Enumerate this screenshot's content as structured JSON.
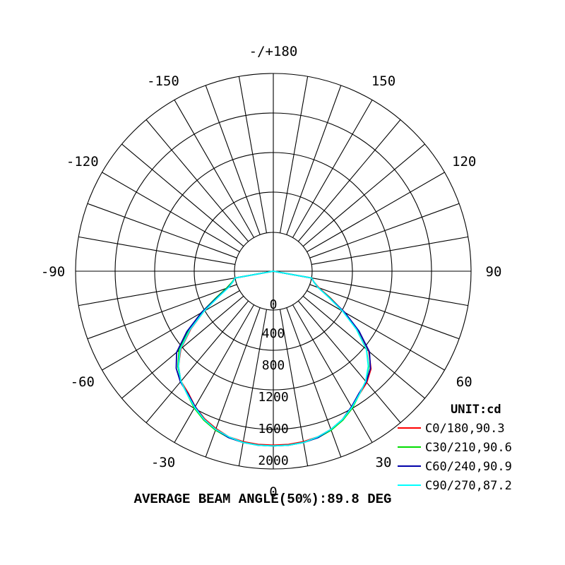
{
  "chart_data": {
    "type": "polar",
    "unit_label": "UNIT:cd",
    "footer": "AVERAGE BEAM ANGLE(50%):89.8 DEG",
    "radial_ticks": [
      "0",
      "400",
      "800",
      "1200",
      "1600",
      "2000"
    ],
    "radial_max": 2000,
    "angle_labels": [
      {
        "angle": 0,
        "text": "0"
      },
      {
        "angle": 30,
        "text": "30"
      },
      {
        "angle": 60,
        "text": "60"
      },
      {
        "angle": 90,
        "text": "90"
      },
      {
        "angle": 120,
        "text": "120"
      },
      {
        "angle": 150,
        "text": "150"
      },
      {
        "angle": 180,
        "text": "-/+180"
      },
      {
        "angle": -150,
        "text": "-150"
      },
      {
        "angle": -120,
        "text": "-120"
      },
      {
        "angle": -90,
        "text": "-90"
      },
      {
        "angle": -60,
        "text": "-60"
      },
      {
        "angle": -30,
        "text": "-30"
      }
    ],
    "angles": [
      -80,
      -75,
      -70,
      -65,
      -60,
      -55,
      -50,
      -45,
      -40,
      -35,
      -30,
      -25,
      -20,
      -15,
      -10,
      -5,
      0,
      5,
      10,
      15,
      20,
      25,
      30,
      35,
      40,
      45,
      50,
      55,
      60,
      65,
      70,
      75,
      80
    ],
    "series": [
      {
        "name": "C0/180,90.3",
        "color": "#ff0000",
        "values": [
          0,
          40,
          120,
          280,
          520,
          780,
          1030,
          1200,
          1320,
          1380,
          1480,
          1560,
          1620,
          1670,
          1690,
          1700,
          1700,
          1700,
          1690,
          1670,
          1630,
          1570,
          1490,
          1400,
          1340,
          1250,
          1080,
          800,
          540,
          300,
          120,
          40,
          0
        ]
      },
      {
        "name": "C30/210,90.6",
        "color": "#00dd00",
        "values": [
          0,
          50,
          140,
          310,
          560,
          820,
          1060,
          1210,
          1320,
          1400,
          1500,
          1580,
          1640,
          1680,
          1700,
          1710,
          1710,
          1710,
          1700,
          1680,
          1640,
          1580,
          1500,
          1400,
          1320,
          1210,
          1040,
          790,
          530,
          290,
          110,
          40,
          0
        ]
      },
      {
        "name": "C60/240,90.9",
        "color": "#0000aa",
        "values": [
          0,
          40,
          120,
          290,
          560,
          840,
          1100,
          1240,
          1330,
          1390,
          1480,
          1570,
          1630,
          1680,
          1700,
          1710,
          1710,
          1710,
          1700,
          1680,
          1630,
          1570,
          1480,
          1390,
          1330,
          1240,
          1090,
          830,
          550,
          280,
          110,
          40,
          0
        ]
      },
      {
        "name": "C90/270,87.2",
        "color": "#00ffff",
        "values": [
          0,
          40,
          110,
          270,
          520,
          790,
          1040,
          1200,
          1320,
          1400,
          1490,
          1570,
          1630,
          1670,
          1700,
          1710,
          1710,
          1710,
          1700,
          1670,
          1630,
          1570,
          1490,
          1400,
          1320,
          1200,
          1040,
          790,
          520,
          270,
          110,
          40,
          0
        ]
      }
    ]
  }
}
